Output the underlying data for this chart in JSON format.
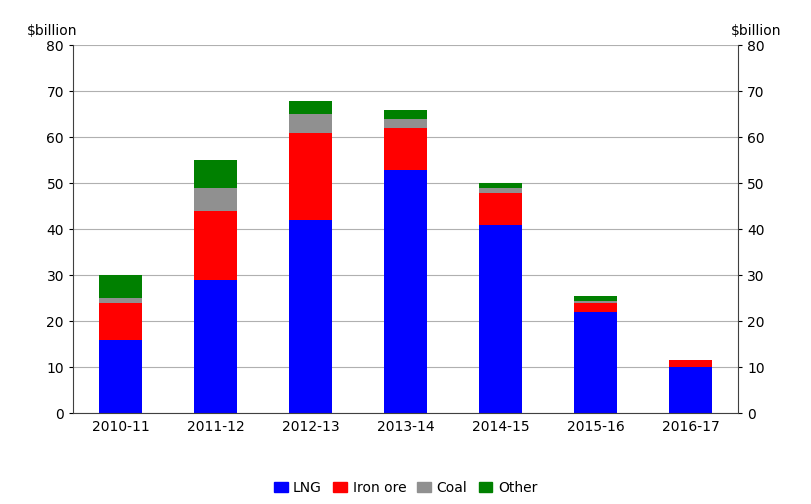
{
  "categories": [
    "2010-11",
    "2011-12",
    "2012-13",
    "2013-14",
    "2014-15",
    "2015-16",
    "2016-17"
  ],
  "series": {
    "LNG": [
      16,
      29,
      42,
      53,
      41,
      22,
      10
    ],
    "Iron ore": [
      8,
      15,
      19,
      9,
      7,
      2,
      1.5
    ],
    "Coal": [
      1,
      5,
      4,
      2,
      1,
      0.5,
      0
    ],
    "Other": [
      5,
      6,
      3,
      2,
      1,
      1,
      0
    ]
  },
  "colors": {
    "LNG": "#0000ff",
    "Iron ore": "#ff0000",
    "Coal": "#909090",
    "Other": "#008000"
  },
  "ylim": [
    0,
    80
  ],
  "yticks": [
    0,
    10,
    20,
    30,
    40,
    50,
    60,
    70,
    80
  ],
  "ylabel_left": "$billion",
  "ylabel_right": "$billion",
  "bar_width": 0.45,
  "background_color": "#ffffff",
  "grid_color": "#b0b0b0",
  "legend_order": [
    "LNG",
    "Iron ore",
    "Coal",
    "Other"
  ]
}
